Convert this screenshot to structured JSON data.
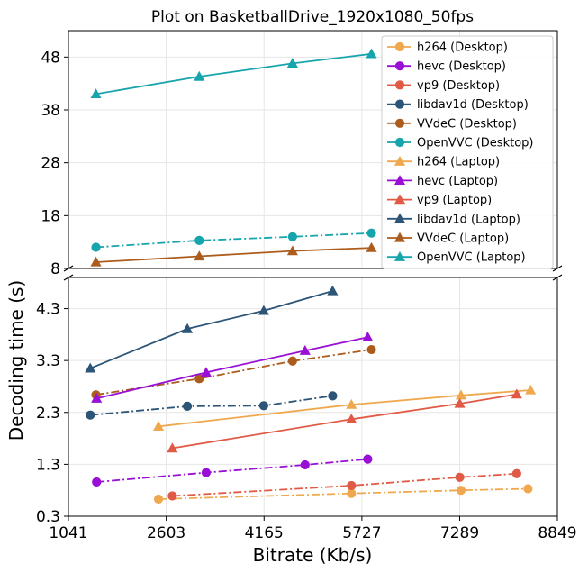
{
  "chart_data": {
    "type": "line",
    "title": "Plot on BasketballDrive_1920x1080_50fps",
    "xlabel": "Bitrate (Kb/s)",
    "ylabel": "Decoding time (s)",
    "xlim": [
      1041,
      8849
    ],
    "x_ticks": [
      "1041",
      "2603",
      "4165",
      "5727",
      "7289",
      "8849"
    ],
    "upper_panel": {
      "ylim": [
        8,
        53
      ],
      "y_ticks": [
        "8",
        "18",
        "28",
        "38",
        "48"
      ]
    },
    "lower_panel": {
      "ylim": [
        0.3,
        4.9
      ],
      "y_ticks": [
        "0.3",
        "1.3",
        "2.3",
        "3.3",
        "4.3"
      ]
    },
    "grid": true,
    "legend_position": "upper-right",
    "series": [
      {
        "name": "h264 (Desktop)",
        "color": "#f0a84e",
        "marker": "circle",
        "style": "dashdot",
        "panel": "lower",
        "x": [
          2480,
          5560,
          7310,
          8380
        ],
        "y": [
          0.63,
          0.74,
          0.8,
          0.83
        ]
      },
      {
        "name": "hevc (Desktop)",
        "color": "#9a0fd6",
        "marker": "circle",
        "style": "dashdot",
        "panel": "lower",
        "x": [
          1490,
          3240,
          4820,
          5820
        ],
        "y": [
          0.96,
          1.14,
          1.29,
          1.4
        ]
      },
      {
        "name": "vp9 (Desktop)",
        "color": "#e05a45",
        "marker": "circle",
        "style": "dashdot",
        "panel": "lower",
        "x": [
          2700,
          5560,
          7290,
          8200
        ],
        "y": [
          0.69,
          0.89,
          1.05,
          1.12
        ]
      },
      {
        "name": "libdav1d (Desktop)",
        "color": "#2c5577",
        "marker": "circle",
        "style": "dashdot",
        "panel": "lower",
        "x": [
          1390,
          2940,
          4160,
          5260
        ],
        "y": [
          2.25,
          2.42,
          2.43,
          2.62
        ]
      },
      {
        "name": "VVdeC (Desktop)",
        "color": "#ac5c1c",
        "marker": "circle",
        "style": "dashdot",
        "panel": "lower",
        "x": [
          1480,
          3130,
          4620,
          5880
        ],
        "y": [
          2.64,
          2.95,
          3.29,
          3.51
        ]
      },
      {
        "name": "OpenVVC (Desktop)",
        "color": "#16a4ad",
        "marker": "circle",
        "style": "dashdot",
        "panel": "upper",
        "x": [
          1480,
          3130,
          4620,
          5880
        ],
        "y": [
          12.0,
          13.3,
          14.0,
          14.7
        ]
      },
      {
        "name": "h264 (Laptop)",
        "color": "#f0a84e",
        "marker": "triangle",
        "style": "solid",
        "panel": "lower",
        "x": [
          2480,
          5560,
          7310,
          8420
        ],
        "y": [
          2.03,
          2.45,
          2.63,
          2.73
        ]
      },
      {
        "name": "hevc (Laptop)",
        "color": "#9a0fd6",
        "marker": "triangle",
        "style": "solid",
        "panel": "lower",
        "x": [
          1490,
          3240,
          4820,
          5820
        ],
        "y": [
          2.57,
          3.07,
          3.49,
          3.75
        ]
      },
      {
        "name": "vp9 (Laptop)",
        "color": "#e05a45",
        "marker": "triangle",
        "style": "solid",
        "panel": "lower",
        "x": [
          2700,
          5560,
          7290,
          8200
        ],
        "y": [
          1.61,
          2.17,
          2.47,
          2.65
        ]
      },
      {
        "name": "libdav1d (Laptop)",
        "color": "#2c5577",
        "marker": "triangle",
        "style": "solid",
        "panel": "lower",
        "x": [
          1390,
          2940,
          4160,
          5260
        ],
        "y": [
          3.15,
          3.91,
          4.26,
          4.64
        ]
      },
      {
        "name": "VVdeC (Laptop)",
        "color": "#ac5c1c",
        "marker": "triangle",
        "style": "solid",
        "panel": "upper",
        "x": [
          1480,
          3130,
          4620,
          5880
        ],
        "y": [
          9.2,
          10.3,
          11.3,
          11.9
        ]
      },
      {
        "name": "OpenVVC (Laptop)",
        "color": "#16a4ad",
        "marker": "triangle",
        "style": "solid",
        "panel": "upper",
        "x": [
          1480,
          3130,
          4620,
          5880
        ],
        "y": [
          41.0,
          44.3,
          46.8,
          48.6
        ]
      }
    ]
  }
}
